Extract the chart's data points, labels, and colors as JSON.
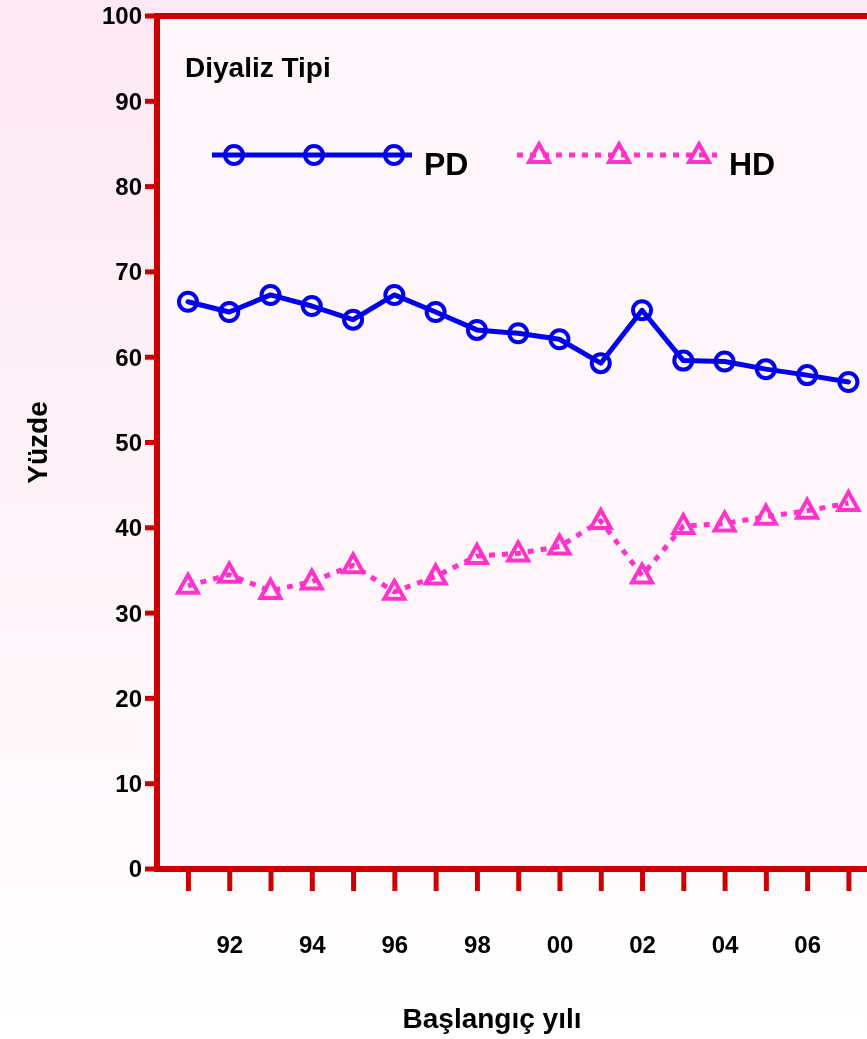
{
  "chart_data": {
    "type": "line",
    "xlabel": "Başlangıç yılı",
    "ylabel": "Yüzde",
    "legend_title": "Diyaliz Tipi",
    "legend": "top",
    "categories": [
      null,
      "92",
      null,
      "94",
      null,
      "96",
      null,
      "98",
      null,
      "00",
      null,
      "02",
      null,
      "04",
      null,
      "06",
      null
    ],
    "ylim": [
      0,
      100
    ],
    "yticks": [
      0,
      10,
      20,
      30,
      40,
      50,
      60,
      70,
      80,
      90,
      100
    ],
    "series": [
      {
        "name": "PD",
        "color": "#0000ee",
        "marker": "circle",
        "line_style": "solid",
        "values": [
          66.5,
          65.3,
          67.3,
          66.0,
          64.4,
          67.3,
          65.3,
          63.2,
          62.8,
          62.1,
          59.3,
          65.5,
          59.6,
          59.5,
          58.6,
          57.9,
          57.1
        ]
      },
      {
        "name": "HD",
        "color": "#ff33cc",
        "marker": "triangle",
        "line_style": "dotted",
        "values": [
          33.2,
          34.5,
          32.6,
          33.7,
          35.6,
          32.5,
          34.3,
          36.7,
          37.0,
          37.8,
          40.8,
          34.4,
          40.2,
          40.5,
          41.3,
          42.0,
          42.9
        ]
      }
    ]
  }
}
